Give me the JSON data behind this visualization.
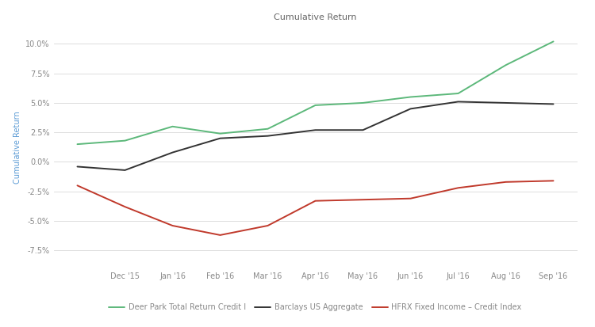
{
  "title": "Cumulative Return",
  "ylabel": "Cumulative Return",
  "x_ticks_labels": [
    "Dec '15",
    "Jan '16",
    "Feb '16",
    "Mar '16",
    "Apr '16",
    "May '16",
    "Jun '16",
    "Jul '16",
    "Aug '16",
    "Sep '16"
  ],
  "ylim": [
    -0.09,
    0.115
  ],
  "yticks": [
    -0.075,
    -0.05,
    -0.025,
    0.0,
    0.025,
    0.05,
    0.075,
    0.1
  ],
  "series": [
    {
      "name": "Deer Park Total Return Credit I",
      "color": "#5cb87a",
      "linewidth": 1.4,
      "data_x": [
        0,
        1,
        2,
        3,
        4,
        5,
        6,
        7,
        8,
        9,
        10
      ],
      "data_y": [
        0.015,
        0.018,
        0.03,
        0.024,
        0.028,
        0.048,
        0.05,
        0.055,
        0.058,
        0.082,
        0.102
      ]
    },
    {
      "name": "Barclays US Aggregate",
      "color": "#333333",
      "linewidth": 1.4,
      "data_x": [
        0,
        1,
        2,
        3,
        4,
        5,
        6,
        7,
        8,
        9,
        10
      ],
      "data_y": [
        -0.004,
        -0.007,
        0.008,
        0.02,
        0.022,
        0.027,
        0.027,
        0.045,
        0.051,
        0.05,
        0.049
      ]
    },
    {
      "name": "HFRX Fixed Income – Credit Index",
      "color": "#c0392b",
      "linewidth": 1.4,
      "data_x": [
        0,
        1,
        2,
        3,
        4,
        5,
        6,
        7,
        8,
        9,
        10
      ],
      "data_y": [
        -0.02,
        -0.038,
        -0.054,
        -0.062,
        -0.054,
        -0.033,
        -0.032,
        -0.031,
        -0.022,
        -0.017,
        -0.016
      ]
    }
  ],
  "background_color": "#ffffff",
  "plot_bg_color": "#ffffff",
  "grid_color": "#d8d8d8",
  "title_fontsize": 8,
  "axis_label_fontsize": 7,
  "tick_fontsize": 7,
  "legend_fontsize": 7,
  "tick_color": "#888888",
  "title_color": "#666666",
  "ylabel_color": "#5b9bd5"
}
